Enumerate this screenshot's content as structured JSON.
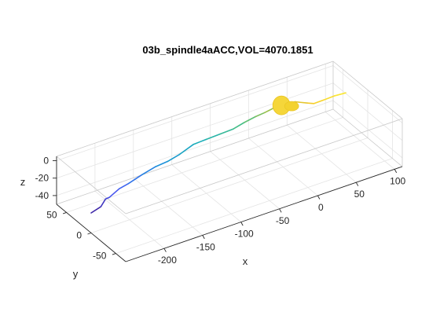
{
  "chart_data": {
    "type": "line3d",
    "title": "03b_spindle4aACC,VOL=4070.1851",
    "xlabel": "x",
    "ylabel": "y",
    "zlabel": "z",
    "xlim": [
      -250,
      110
    ],
    "ylim": [
      -70,
      70
    ],
    "zlim": [
      -50,
      5
    ],
    "xticks": [
      -200,
      -150,
      -100,
      -50,
      0,
      50,
      100
    ],
    "yticks": [
      -50,
      0,
      50
    ],
    "zticks": [
      -40,
      -20,
      0
    ],
    "grid": true,
    "colormap": "parula",
    "trace": [
      {
        "x": -250,
        "y": 0,
        "z": -27
      },
      {
        "x": -236,
        "y": 2,
        "z": -25
      },
      {
        "x": -228,
        "y": 5,
        "z": -20
      },
      {
        "x": -220,
        "y": 10,
        "z": -23
      },
      {
        "x": -205,
        "y": 13,
        "z": -19
      },
      {
        "x": -190,
        "y": 18,
        "z": -20
      },
      {
        "x": -170,
        "y": 22,
        "z": -18
      },
      {
        "x": -150,
        "y": 25,
        "z": -16
      },
      {
        "x": -135,
        "y": 24,
        "z": -14
      },
      {
        "x": -118,
        "y": 26,
        "z": -12
      },
      {
        "x": -100,
        "y": 26,
        "z": -6
      },
      {
        "x": -85,
        "y": 24,
        "z": -4
      },
      {
        "x": -68,
        "y": 22,
        "z": -2
      },
      {
        "x": -52,
        "y": 20,
        "z": 0
      },
      {
        "x": -38,
        "y": 20,
        "z": 3
      },
      {
        "x": -22,
        "y": 22,
        "z": 4
      },
      {
        "x": -8,
        "y": 25,
        "z": 3
      },
      {
        "x": 8,
        "y": 28,
        "z": 3
      },
      {
        "x": 20,
        "y": 32,
        "z": 2
      },
      {
        "x": 35,
        "y": 30,
        "z": 0
      },
      {
        "x": 48,
        "y": 25,
        "z": -3
      },
      {
        "x": 58,
        "y": 28,
        "z": -8
      },
      {
        "x": 72,
        "y": 30,
        "z": -9
      },
      {
        "x": 88,
        "y": 32,
        "z": -10
      },
      {
        "x": 102,
        "y": 32,
        "z": -11
      }
    ],
    "soma": {
      "x": 18,
      "y": 30,
      "z": 2
    }
  }
}
